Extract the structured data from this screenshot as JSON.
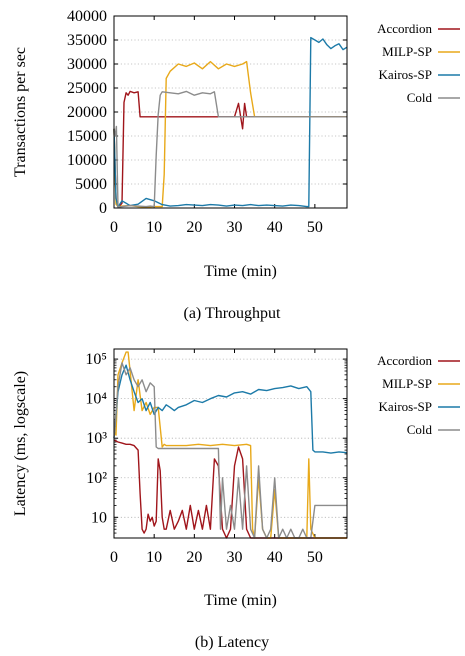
{
  "chart_data": [
    {
      "type": "line",
      "caption": "(a) Throughput",
      "xlabel": "Time (min)",
      "ylabel": "Transactions per sec",
      "xlim": [
        0,
        58
      ],
      "ylim": [
        0,
        40000
      ],
      "xticks": [
        0,
        10,
        20,
        30,
        40,
        50
      ],
      "yticks": [
        0,
        5000,
        10000,
        15000,
        20000,
        25000,
        30000,
        35000,
        40000
      ],
      "ytick_labels": [
        "0",
        "5000",
        "10000",
        "15000",
        "20000",
        "25000",
        "30000",
        "35000",
        "40000"
      ],
      "grid": "horizontal dotted",
      "legend": "right",
      "series": [
        {
          "name": "Accordion",
          "color": "#a0151b",
          "x": [
            0,
            0.5,
            1,
            1.5,
            2,
            2.5,
            3,
            3.5,
            4,
            5,
            6,
            6.5,
            7,
            9,
            12,
            15,
            18,
            20,
            22,
            24,
            25,
            27,
            30,
            31,
            32,
            32.5,
            33,
            34,
            36,
            40,
            45,
            50,
            55,
            58
          ],
          "y": [
            16500,
            2000,
            300,
            500,
            1000,
            22000,
            24000,
            23500,
            24300,
            24000,
            24200,
            19000,
            19000,
            19000,
            19000,
            19000,
            19000,
            19000,
            19000,
            19000,
            19000,
            19000,
            19000,
            21800,
            16500,
            21800,
            19000,
            19000,
            19000,
            19000,
            19000,
            19000,
            19000,
            19000
          ]
        },
        {
          "name": "MILP-SP",
          "color": "#e8a91a",
          "x": [
            0,
            0.5,
            1,
            2,
            4,
            6,
            8,
            10,
            12,
            12.5,
            13,
            14,
            16,
            18,
            20,
            22,
            24,
            26,
            28,
            30,
            32,
            33,
            34,
            35,
            36,
            40,
            45,
            50,
            55,
            58
          ],
          "y": [
            16500,
            800,
            300,
            400,
            500,
            300,
            200,
            300,
            300,
            7000,
            27000,
            28500,
            30000,
            29500,
            30200,
            29000,
            30500,
            29000,
            30000,
            29500,
            30000,
            30500,
            24000,
            19000,
            19000,
            19000,
            19000,
            19000,
            19000,
            19000
          ]
        },
        {
          "name": "Kairos-SP",
          "color": "#1c7aa8",
          "x": [
            0,
            0.5,
            1,
            2,
            4,
            6,
            8,
            10,
            12,
            14,
            16,
            18,
            20,
            22,
            24,
            26,
            28,
            30,
            32,
            34,
            36,
            38,
            40,
            42,
            44,
            46,
            48,
            48.5,
            49,
            50,
            51,
            52,
            53,
            54,
            55,
            56,
            57,
            58
          ],
          "y": [
            16500,
            2000,
            200,
            1500,
            500,
            800,
            2000,
            1500,
            700,
            400,
            500,
            700,
            600,
            500,
            700,
            600,
            400,
            600,
            500,
            700,
            500,
            600,
            500,
            400,
            600,
            500,
            300,
            300,
            35500,
            35000,
            34500,
            35200,
            34000,
            33200,
            33800,
            34200,
            33000,
            33500
          ]
        },
        {
          "name": "Cold",
          "color": "#8c8c8c",
          "x": [
            0,
            0.3,
            0.6,
            1,
            2,
            4,
            6,
            8,
            9,
            10,
            10.5,
            11,
            11.5,
            12,
            14,
            16,
            18,
            20,
            22,
            24,
            25,
            26,
            27,
            28,
            30,
            32,
            35,
            40,
            45,
            50,
            55,
            58
          ],
          "y": [
            16500,
            15000,
            17000,
            200,
            300,
            500,
            400,
            300,
            400,
            300,
            11000,
            19500,
            23500,
            24200,
            24000,
            23800,
            24300,
            23500,
            24000,
            23800,
            24200,
            19000,
            19000,
            19000,
            19000,
            19000,
            19000,
            19000,
            19000,
            19000,
            19000,
            19000
          ]
        }
      ]
    },
    {
      "type": "line",
      "caption": "(b) Latency",
      "xlabel": "Time (min)",
      "ylabel": "Latency (ms, logscale)",
      "yscale": "log",
      "xlim": [
        0,
        58
      ],
      "ylim": [
        3,
        180000
      ],
      "xticks": [
        0,
        10,
        20,
        30,
        40,
        50
      ],
      "yticks": [
        10,
        100,
        1000,
        10000,
        100000
      ],
      "ytick_labels": [
        "10",
        "10²",
        "10³",
        "10⁴",
        "10⁵"
      ],
      "grid": "horizontal dotted",
      "legend": "right",
      "series": [
        {
          "name": "Accordion",
          "color": "#a0151b",
          "x": [
            0,
            1,
            2,
            3,
            4,
            5,
            6,
            6.5,
            7,
            7.5,
            8,
            8.5,
            9,
            9.5,
            10,
            10.5,
            11,
            11.5,
            12,
            12.5,
            13,
            14,
            15,
            16,
            17,
            18,
            19,
            20,
            21,
            22,
            23,
            24,
            25,
            26,
            27,
            28,
            29,
            30,
            31,
            32,
            33,
            34,
            35,
            36,
            40,
            45,
            50,
            55,
            58
          ],
          "y": [
            900,
            800,
            750,
            700,
            700,
            650,
            500,
            40,
            5,
            4,
            5,
            12,
            8,
            10,
            6,
            8,
            300,
            150,
            10,
            5,
            5,
            15,
            5,
            8,
            15,
            5,
            20,
            5,
            15,
            5,
            20,
            5,
            300,
            200,
            5,
            3,
            5,
            200,
            600,
            300,
            5,
            3,
            3,
            3,
            3,
            3,
            3,
            3,
            3
          ]
        },
        {
          "name": "MILP-SP",
          "color": "#e8a91a",
          "x": [
            0,
            0.5,
            1,
            2,
            3,
            3.5,
            4,
            5,
            6,
            7,
            8,
            9,
            10,
            11,
            12,
            12.5,
            13,
            15,
            18,
            21,
            24,
            27,
            30,
            33,
            34,
            34.5,
            35,
            36,
            37,
            38,
            39,
            40,
            41,
            42,
            43,
            44,
            45,
            46,
            47,
            48,
            48.5,
            49,
            50,
            52,
            55,
            58
          ],
          "y": [
            1500,
            1200,
            40000,
            80000,
            150000,
            150000,
            50000,
            5000,
            30000,
            5000,
            8000,
            4000,
            6000,
            6000,
            600,
            700,
            650,
            650,
            650,
            700,
            650,
            700,
            650,
            700,
            650,
            5,
            3,
            100,
            5,
            3,
            3,
            50,
            3,
            3,
            3,
            3,
            3,
            3,
            3,
            3,
            300,
            5,
            3,
            3,
            3,
            3
          ]
        },
        {
          "name": "Kairos-SP",
          "color": "#1c7aa8",
          "x": [
            0,
            1,
            2,
            3,
            4,
            5,
            6,
            7,
            8,
            9,
            10,
            11,
            12,
            13,
            14,
            15,
            16,
            18,
            20,
            22,
            24,
            26,
            28,
            30,
            32,
            34,
            36,
            38,
            40,
            42,
            44,
            46,
            48,
            49,
            49.5,
            50,
            52,
            54,
            56,
            58
          ],
          "y": [
            1000,
            15000,
            40000,
            70000,
            30000,
            15000,
            8000,
            10000,
            5000,
            8000,
            4000,
            6000,
            5000,
            7000,
            6000,
            5000,
            6000,
            7000,
            9000,
            8000,
            10000,
            12000,
            11000,
            14000,
            15000,
            13000,
            17000,
            16000,
            18000,
            19000,
            21000,
            18000,
            20000,
            15000,
            500,
            450,
            450,
            420,
            450,
            430
          ]
        },
        {
          "name": "Cold",
          "color": "#8c8c8c",
          "x": [
            0,
            1,
            2,
            3,
            4,
            5,
            6,
            7,
            8,
            9,
            10,
            10.5,
            11,
            12,
            13,
            15,
            18,
            21,
            24,
            25,
            26,
            26.5,
            27,
            28,
            29,
            30,
            31,
            32,
            33,
            34,
            35,
            36,
            37,
            38,
            39,
            40,
            41,
            42,
            43,
            44,
            45,
            46,
            47,
            48,
            49,
            50,
            52,
            55,
            58
          ],
          "y": [
            1000,
            20000,
            80000,
            40000,
            60000,
            30000,
            20000,
            30000,
            15000,
            25000,
            20000,
            600,
            550,
            550,
            550,
            550,
            550,
            550,
            550,
            550,
            550,
            5,
            100,
            5,
            20,
            5,
            100,
            5,
            200,
            5,
            3,
            200,
            5,
            3,
            5,
            100,
            3,
            5,
            3,
            5,
            3,
            3,
            5,
            3,
            3,
            20,
            20,
            20,
            20
          ]
        }
      ]
    }
  ]
}
